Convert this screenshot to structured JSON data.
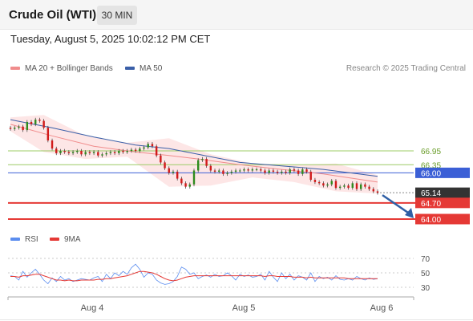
{
  "header": {
    "title": "Crude Oil (WTI)",
    "interval": "30 MIN",
    "datetime": "Tuesday, August 5, 2025 10:02:12 PM CET"
  },
  "legend": {
    "ma20_label": "MA 20 + Bollinger Bands",
    "ma50_label": "MA 50",
    "copyright": "Research © 2025 Trading Central"
  },
  "rsi_legend": {
    "rsi_label": "RSI",
    "ma9_label": "9MA"
  },
  "colors": {
    "bullish": "#2e8b1e",
    "bearish": "#d11a1a",
    "ma20": "#f08c8c",
    "ma50": "#3a5fa8",
    "bollinger_fill": "#fde0e0",
    "resistance": "#9ccc65",
    "pivot": "#3b5fd6",
    "support": "#e53935",
    "current_price": "#333333",
    "rsi": "#5b8def",
    "rsi_ma": "#e53935",
    "forecast_arrow": "#2f5fa5"
  },
  "chart_data": {
    "type": "candlestick",
    "x_ticks": [
      "Aug 4",
      "Aug 5",
      "Aug 6"
    ],
    "price_levels": [
      {
        "label": "66.95",
        "value": 66.95,
        "kind": "resistance"
      },
      {
        "label": "66.35",
        "value": 66.35,
        "kind": "resistance"
      },
      {
        "label": "66.00",
        "value": 66.0,
        "kind": "pivot"
      },
      {
        "label": "65.14",
        "value": 65.14,
        "kind": "current"
      },
      {
        "label": "64.70",
        "value": 64.7,
        "kind": "support"
      },
      {
        "label": "64.00",
        "value": 64.0,
        "kind": "support"
      }
    ],
    "candles_close": [
      67.9,
      67.95,
      68.0,
      67.85,
      68.2,
      68.1,
      68.3,
      68.25,
      67.95,
      67.4,
      67.05,
      66.85,
      66.95,
      66.9,
      66.85,
      66.9,
      66.95,
      66.8,
      66.9,
      66.85,
      66.9,
      66.75,
      66.8,
      66.85,
      66.9,
      66.85,
      66.95,
      66.9,
      66.95,
      67.0,
      66.95,
      67.05,
      67.1,
      67.25,
      67.15,
      66.75,
      66.45,
      66.2,
      66.0,
      66.05,
      65.75,
      65.55,
      65.4,
      65.5,
      66.1,
      66.55,
      66.6,
      66.3,
      66.1,
      66.05,
      66.1,
      65.95,
      66.0,
      66.05,
      66.1,
      66.1,
      66.15,
      66.1,
      66.15,
      66.15,
      66.1,
      66.0,
      66.1,
      66.05,
      66.0,
      66.05,
      66.0,
      66.15,
      66.1,
      65.95,
      66.15,
      66.05,
      65.7,
      65.6,
      65.55,
      65.45,
      65.5,
      65.65,
      65.35,
      65.4,
      65.45,
      65.35,
      65.55,
      65.3,
      65.5,
      65.4,
      65.3,
      65.2,
      65.14
    ],
    "ma20": [
      [
        0,
        68.1
      ],
      [
        10,
        67.6
      ],
      [
        20,
        67.15
      ],
      [
        30,
        66.9
      ],
      [
        38,
        66.75
      ],
      [
        45,
        66.6
      ],
      [
        55,
        66.35
      ],
      [
        65,
        66.15
      ],
      [
        75,
        65.95
      ],
      [
        88,
        65.6
      ]
    ],
    "ma50": [
      [
        0,
        68.3
      ],
      [
        10,
        67.95
      ],
      [
        20,
        67.55
      ],
      [
        30,
        67.2
      ],
      [
        38,
        67.05
      ],
      [
        45,
        66.8
      ],
      [
        55,
        66.45
      ],
      [
        65,
        66.3
      ],
      [
        75,
        66.15
      ],
      [
        88,
        65.85
      ]
    ],
    "bollinger_upper": [
      [
        0,
        68.4
      ],
      [
        8,
        68.5
      ],
      [
        18,
        67.6
      ],
      [
        28,
        67.3
      ],
      [
        38,
        67.5
      ],
      [
        48,
        66.8
      ],
      [
        58,
        66.4
      ],
      [
        68,
        66.35
      ],
      [
        78,
        66.4
      ],
      [
        88,
        65.9
      ]
    ],
    "bollinger_lower": [
      [
        0,
        67.8
      ],
      [
        8,
        66.9
      ],
      [
        18,
        66.6
      ],
      [
        28,
        66.7
      ],
      [
        38,
        65.4
      ],
      [
        48,
        65.45
      ],
      [
        58,
        65.8
      ],
      [
        68,
        65.6
      ],
      [
        78,
        65.2
      ],
      [
        88,
        65.1
      ]
    ],
    "forecast_arrow": {
      "from": 65.14,
      "to": 64.0
    },
    "rsi": {
      "ticks": [
        "70",
        "50",
        "30"
      ],
      "tick_values": [
        70,
        50,
        30
      ],
      "ylim": [
        15,
        85
      ],
      "rsi_values": [
        46,
        45,
        40,
        52,
        44,
        50,
        55,
        48,
        40,
        35,
        43,
        38,
        45,
        40,
        42,
        38,
        40,
        42,
        41,
        40,
        43,
        45,
        38,
        48,
        42,
        50,
        46,
        52,
        48,
        57,
        62,
        55,
        44,
        50,
        48,
        40,
        36,
        34,
        35,
        38,
        45,
        58,
        55,
        48,
        50,
        42,
        45,
        47,
        44,
        48,
        45,
        46,
        50,
        46,
        40,
        48,
        45,
        47,
        44,
        45,
        48,
        40,
        52,
        44,
        38,
        50,
        42,
        48,
        40,
        46,
        44,
        40,
        50,
        38,
        45,
        42,
        44,
        40,
        46,
        41,
        40,
        42,
        40,
        45,
        42,
        40,
        43,
        41,
        42
      ],
      "ma_values": [
        45,
        45,
        44,
        46,
        46,
        47,
        48,
        48,
        46,
        44,
        42,
        40,
        40,
        39,
        40,
        39,
        39,
        40,
        40,
        40,
        40,
        41,
        41,
        42,
        42,
        43,
        44,
        45,
        46,
        48,
        50,
        52,
        52,
        51,
        50,
        48,
        45,
        42,
        40,
        39,
        40,
        42,
        44,
        45,
        46,
        46,
        46,
        46,
        46,
        46,
        46,
        46,
        46,
        46,
        46,
        46,
        46,
        46,
        46,
        46,
        46,
        45,
        46,
        46,
        45,
        45,
        45,
        45,
        44,
        44,
        44,
        43,
        44,
        43,
        43,
        43,
        43,
        43,
        43,
        43,
        43,
        42,
        42,
        42,
        42,
        42,
        42,
        42,
        42
      ]
    }
  }
}
